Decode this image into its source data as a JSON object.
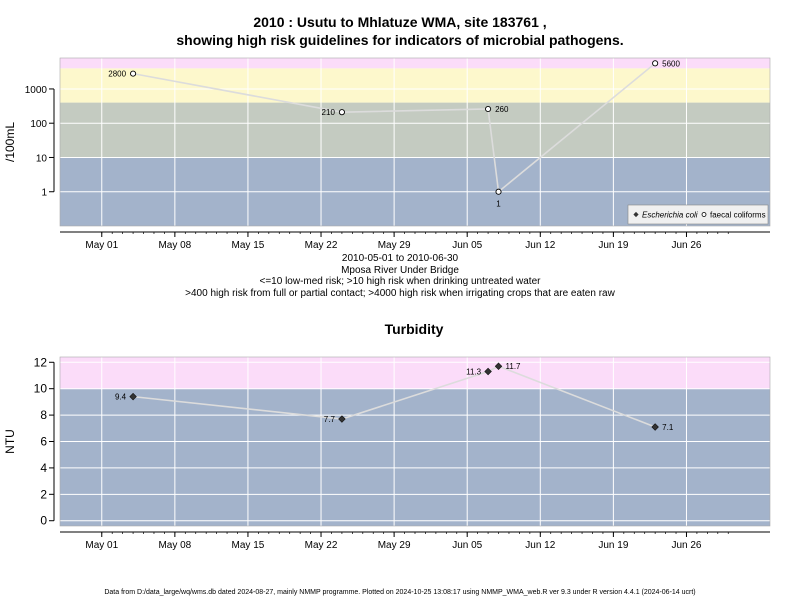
{
  "header": {
    "title_line1": "2010 : Usutu to Mhlatuze WMA, site 183761 ,",
    "title_line2": "showing high risk guidelines for indicators of microbial pathogens."
  },
  "mid_text": {
    "date_range": "2010-05-01 to 2010-06-30",
    "site_name": "Mposa River Under Bridge",
    "guide1": "<=10 low-med risk; >10 high risk when drinking untreated water",
    "guide2": ">400 high risk from full or partial contact; >4000 high risk when irrigating crops that are eaten raw"
  },
  "footer": {
    "text": "Data from D:/data_large/wq/wms.db dated 2024-08-27, mainly NMMP programme. Plotted on 2024-10-25 13:08:17 using NMMP_WMA_web.R ver 9.3 under R version 4.4.1 (2024-06-14 ucrt)"
  },
  "colors": {
    "band_blue": "#a3b3cb",
    "band_green": "#c4cbc1",
    "band_yellow": "#fdf8cc",
    "band_pink": "#fbdcf9",
    "line": "#dcdcdc",
    "grid": "#ffffff"
  },
  "chart_data": [
    {
      "type": "line",
      "title": "",
      "ylabel": "/100mL",
      "xlabel": "",
      "y_scale": "log",
      "ylim": [
        0.1,
        8000
      ],
      "xlim": [
        "2010-04-27",
        "2010-07-04"
      ],
      "y_ticks": [
        1,
        10,
        100,
        1000
      ],
      "y_tick_labels": [
        "1",
        "10",
        "100",
        "1000"
      ],
      "x_ticks": [
        "2010-05-01",
        "2010-05-08",
        "2010-05-15",
        "2010-05-22",
        "2010-05-29",
        "2010-06-05",
        "2010-06-12",
        "2010-06-19",
        "2010-06-26"
      ],
      "x_tick_labels": [
        "May 01",
        "May 08",
        "May 15",
        "May 22",
        "May 29",
        "Jun 05",
        "Jun 12",
        "Jun 19",
        "Jun 26"
      ],
      "grid": true,
      "risk_bands": [
        {
          "from": 0.1,
          "to": 10,
          "color": "#a3b3cb"
        },
        {
          "from": 10,
          "to": 400,
          "color": "#c4cbc1"
        },
        {
          "from": 400,
          "to": 4000,
          "color": "#fdf8cc"
        },
        {
          "from": 4000,
          "to": 8000,
          "color": "#fbdcf9"
        }
      ],
      "legend": {
        "position": "bottom-right",
        "entries": [
          "Escherichia coli",
          "faecal coliforms"
        ]
      },
      "series": [
        {
          "name": "faecal coliforms",
          "marker": "open-circle",
          "points": [
            {
              "x": "2010-05-04",
              "y": 2800,
              "label": "2800",
              "label_side": "left"
            },
            {
              "x": "2010-05-24",
              "y": 210,
              "label": "210",
              "label_side": "left"
            },
            {
              "x": "2010-06-07",
              "y": 260,
              "label": "260",
              "label_side": "right"
            },
            {
              "x": "2010-06-08",
              "y": 1,
              "label": "1",
              "label_side": "below"
            },
            {
              "x": "2010-06-23",
              "y": 5600,
              "label": "5600",
              "label_side": "right"
            }
          ]
        }
      ]
    },
    {
      "type": "line",
      "title": "Turbidity",
      "ylabel": "NTU",
      "xlabel": "",
      "y_scale": "linear",
      "ylim": [
        -0.4,
        12.4
      ],
      "xlim": [
        "2010-04-27",
        "2010-07-04"
      ],
      "y_ticks": [
        0,
        2,
        4,
        6,
        8,
        10,
        12
      ],
      "y_tick_labels": [
        "0",
        "2",
        "4",
        "6",
        "8",
        "10",
        "12"
      ],
      "x_ticks": [
        "2010-05-01",
        "2010-05-08",
        "2010-05-15",
        "2010-05-22",
        "2010-05-29",
        "2010-06-05",
        "2010-06-12",
        "2010-06-19",
        "2010-06-26"
      ],
      "x_tick_labels": [
        "May 01",
        "May 08",
        "May 15",
        "May 22",
        "May 29",
        "Jun 05",
        "Jun 12",
        "Jun 19",
        "Jun 26"
      ],
      "grid": true,
      "risk_bands": [
        {
          "from": -0.4,
          "to": 10,
          "color": "#a3b3cb"
        },
        {
          "from": 10,
          "to": 12.4,
          "color": "#fbdcf9"
        }
      ],
      "series": [
        {
          "name": "",
          "marker": "filled-diamond",
          "points": [
            {
              "x": "2010-05-04",
              "y": 9.4,
              "label": "9.4",
              "label_side": "left"
            },
            {
              "x": "2010-05-24",
              "y": 7.7,
              "label": "7.7",
              "label_side": "left"
            },
            {
              "x": "2010-06-07",
              "y": 11.3,
              "label": "11.3",
              "label_side": "left"
            },
            {
              "x": "2010-06-08",
              "y": 11.7,
              "label": "11.7",
              "label_side": "right"
            },
            {
              "x": "2010-06-23",
              "y": 7.1,
              "label": "7.1",
              "label_side": "right"
            }
          ]
        }
      ]
    }
  ]
}
